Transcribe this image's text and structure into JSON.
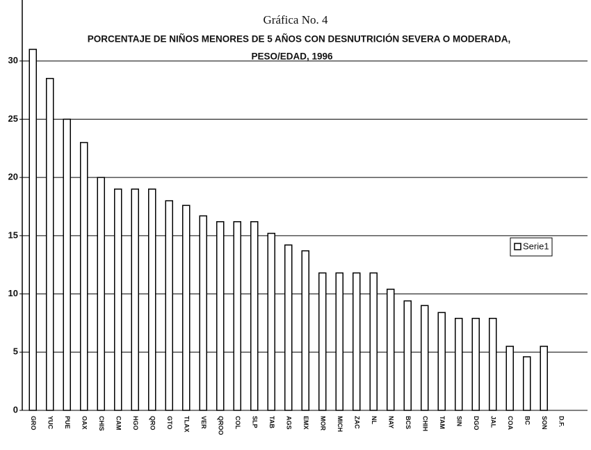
{
  "chart_data": {
    "type": "bar",
    "title": "Gráfica No. 4",
    "subtitle": [
      "PORCENTAJE DE NIÑOS MENORES DE 5 AÑOS CON DESNUTRICIÓN SEVERA O MODERADA,",
      "PESO/EDAD, 1996"
    ],
    "categories": [
      "GRO",
      "YUC",
      "PUE",
      "OAX",
      "CHIS",
      "CAM",
      "HGO",
      "QRO",
      "GTO",
      "TLAX",
      "VER",
      "QROO",
      "COL",
      "SLP",
      "TAB",
      "AGS",
      "EMX",
      "MOR",
      "MICH",
      "ZAC",
      "NL",
      "NAY",
      "BCS",
      "CHIH",
      "TAM",
      "SIN",
      "DGO",
      "JAL",
      "COA",
      "BC",
      "SON",
      "D.F."
    ],
    "series": [
      {
        "name": "Serie1",
        "color": "#ffffff",
        "values": [
          31,
          28.5,
          25,
          23,
          20,
          19,
          19,
          19,
          18,
          17.6,
          16.7,
          16.2,
          16.2,
          16.2,
          15.2,
          14.2,
          13.7,
          11.8,
          11.8,
          11.8,
          11.8,
          10.4,
          9.4,
          9,
          8.4,
          7.9,
          7.9,
          7.9,
          5.5,
          4.6,
          5.5,
          0
        ]
      }
    ],
    "ylim": [
      0,
      35
    ],
    "yticks": [
      0,
      5,
      10,
      15,
      20,
      25,
      30
    ],
    "grid": true,
    "legend": "right"
  }
}
